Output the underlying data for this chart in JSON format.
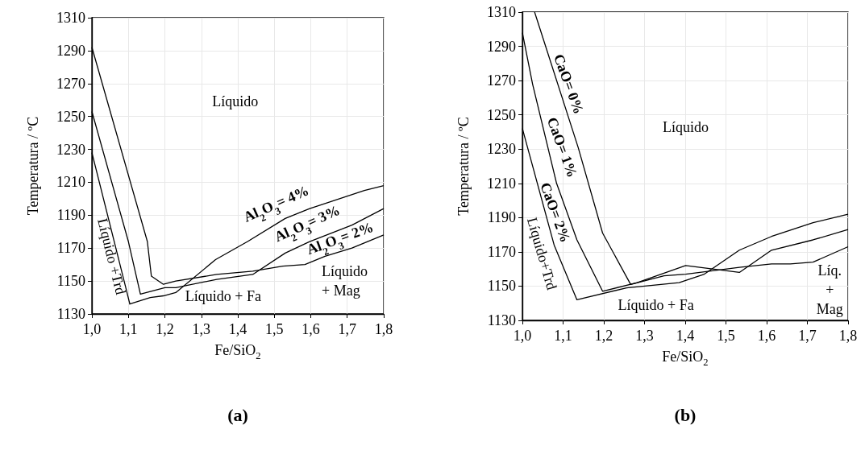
{
  "chart_data": [
    {
      "type": "line",
      "xlabel": "Fe/SiO$_{2}$",
      "ylabel": "Temperatura / ºC",
      "xlim": [
        1.0,
        1.8
      ],
      "ylim": [
        1130,
        1310
      ],
      "xticks": [
        {
          "value": 1.0,
          "label": "1,0"
        },
        {
          "value": 1.1,
          "label": "1,1"
        },
        {
          "value": 1.2,
          "label": "1,2"
        },
        {
          "value": 1.3,
          "label": "1,3"
        },
        {
          "value": 1.4,
          "label": "1,4"
        },
        {
          "value": 1.5,
          "label": "1,5"
        },
        {
          "value": 1.6,
          "label": "1,6"
        },
        {
          "value": 1.7,
          "label": "1,7"
        },
        {
          "value": 1.8,
          "label": "1,8"
        }
      ],
      "yticks": [
        1130,
        1150,
        1170,
        1190,
        1210,
        1230,
        1250,
        1270,
        1290,
        1310
      ],
      "grid": true,
      "marker": "none",
      "line_style": "solid",
      "series": [
        {
          "color": "#000000",
          "x": [
            1.0,
            1.152,
            1.163,
            1.196,
            1.23,
            1.342,
            1.441,
            1.523,
            1.584,
            1.639,
            1.713,
            1.8
          ],
          "values": [
            1292,
            1174,
            1153,
            1148,
            1150,
            1154,
            1156,
            1159,
            1160,
            1165,
            1170,
            1178
          ]
        },
        {
          "color": "#000000",
          "x": [
            1.0,
            1.1,
            1.133,
            1.2,
            1.23,
            1.342,
            1.441,
            1.53,
            1.597,
            1.713,
            1.8
          ],
          "values": [
            1253,
            1174,
            1142,
            1146,
            1146,
            1151,
            1154,
            1167,
            1174,
            1184,
            1194
          ]
        },
        {
          "color": "#000000",
          "x": [
            1.0,
            1.094,
            1.104,
            1.16,
            1.196,
            1.23,
            1.339,
            1.427,
            1.53,
            1.597,
            1.747,
            1.8
          ],
          "values": [
            1228,
            1145,
            1136,
            1140,
            1141,
            1143,
            1163,
            1174,
            1188,
            1194,
            1205,
            1208
          ]
        }
      ],
      "annotations": [
        "Líquido",
        "Líquido + Fa",
        "Líquido\n+ Mag",
        "Líquido +Trd",
        "Al$_{2}$O$_{3}$= 4%",
        "Al$_{2}$O$_{3}$= 3%",
        "Al$_{2}$O$_{3}$= 2%",
        "(a)"
      ]
    },
    {
      "type": "line",
      "xlabel": "Fe/SiO$_{2}$",
      "ylabel": "Temperatura / ºC",
      "xlim": [
        1.0,
        1.8
      ],
      "ylim": [
        1130,
        1310
      ],
      "xticks": [
        {
          "value": 1.0,
          "label": "1,0"
        },
        {
          "value": 1.1,
          "label": "1,1"
        },
        {
          "value": 1.2,
          "label": "1,2"
        },
        {
          "value": 1.3,
          "label": "1,3"
        },
        {
          "value": 1.4,
          "label": "1,4"
        },
        {
          "value": 1.5,
          "label": "1,5"
        },
        {
          "value": 1.6,
          "label": "1,6"
        },
        {
          "value": 1.7,
          "label": "1,7"
        },
        {
          "value": 1.8,
          "label": "1,8"
        }
      ],
      "yticks": [
        1130,
        1150,
        1170,
        1190,
        1210,
        1230,
        1250,
        1270,
        1290,
        1310
      ],
      "grid": true,
      "marker": "none",
      "line_style": "solid",
      "series": [
        {
          "color": "#000000",
          "x": [
            1.03,
            1.137,
            1.197,
            1.266,
            1.348,
            1.401,
            1.533,
            1.612,
            1.658,
            1.714,
            1.8
          ],
          "values": [
            1310,
            1231,
            1181,
            1151,
            1156,
            1157,
            1161,
            1163,
            1163,
            1164,
            1173
          ]
        },
        {
          "color": "#000000",
          "x": [
            1.0,
            1.025,
            1.084,
            1.134,
            1.197,
            1.282,
            1.401,
            1.533,
            1.612,
            1.714,
            1.8
          ],
          "values": [
            1298,
            1268,
            1210,
            1177,
            1147,
            1152,
            1162,
            1158,
            1171,
            1177,
            1183
          ]
        },
        {
          "color": "#000000",
          "x": [
            1.0,
            1.078,
            1.134,
            1.256,
            1.385,
            1.447,
            1.533,
            1.612,
            1.714,
            1.8
          ],
          "values": [
            1242,
            1174,
            1142,
            1149,
            1152,
            1157,
            1171,
            1179,
            1187,
            1192
          ]
        }
      ],
      "annotations": [
        "Líquido",
        "Líquido + Fa",
        "Líq.\n+\nMag",
        "Líquido+Trd",
        "CaO= 0%",
        "CaO= 1%",
        "CaO= 2%",
        "(b)"
      ]
    }
  ]
}
